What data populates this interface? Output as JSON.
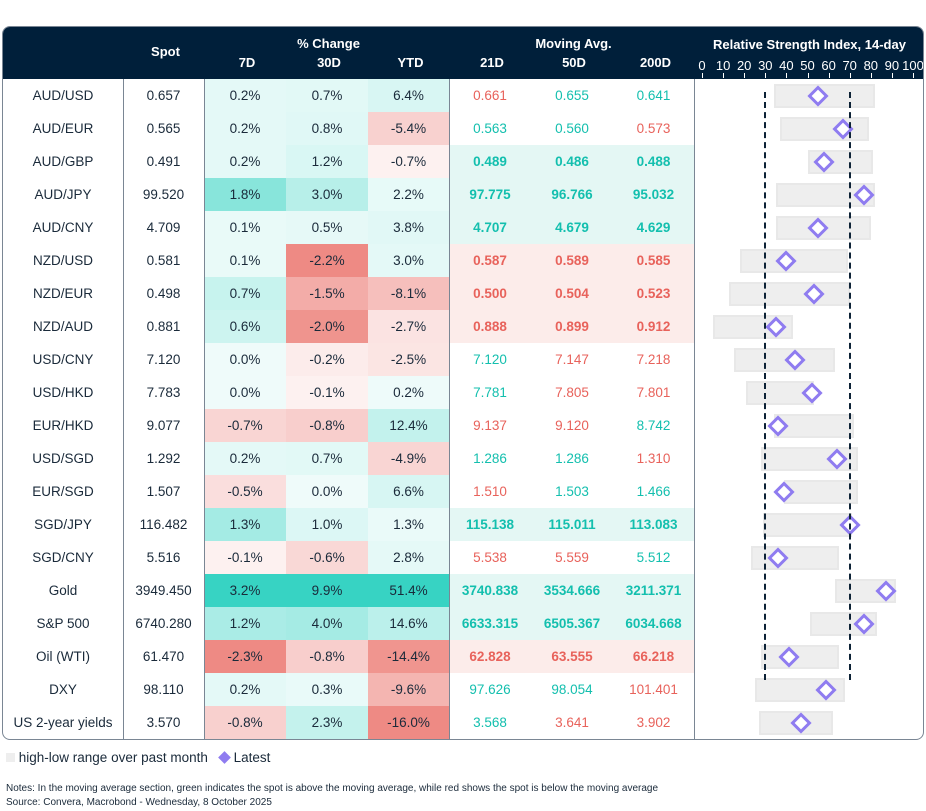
{
  "header": {
    "spot": "Spot",
    "pct_change": "% Change",
    "d7": "7D",
    "d30": "30D",
    "ytd": "YTD",
    "moving_avg": "Moving Avg.",
    "ma21": "21D",
    "ma50": "50D",
    "ma200": "200D",
    "rsi_title": "Relative Strength Index, 14-day"
  },
  "colors": {
    "pos": "#37d3c3",
    "neg": "#ee8a84",
    "ma_green": "#13bfae",
    "ma_red": "#e8625b",
    "ma_green_bg": "#e4f7f4",
    "ma_red_bg": "#fcecea",
    "range": "#eeeeee",
    "latest": "#8f7cf0",
    "header_bg": "#001f3a"
  },
  "chart_data": {
    "type": "table",
    "rsi_axis": {
      "title": "Relative Strength Index, 14-day",
      "range": [
        0,
        100
      ],
      "ticks": [
        "0",
        "10",
        "20",
        "30",
        "40",
        "50",
        "60",
        "70",
        "80",
        "90",
        "100"
      ],
      "reference_lines": [
        30,
        70
      ]
    },
    "rows": [
      {
        "name": "AUD/USD",
        "spot": "0.657",
        "d7": "0.2%",
        "d30": "0.7%",
        "ytd": "6.4%",
        "ma21": "0.661",
        "ma50": "0.655",
        "ma200": "0.641",
        "rsi_low": 34,
        "rsi_high": 82,
        "rsi": 55
      },
      {
        "name": "AUD/EUR",
        "spot": "0.565",
        "d7": "0.2%",
        "d30": "0.8%",
        "ytd": "-5.4%",
        "ma21": "0.563",
        "ma50": "0.560",
        "ma200": "0.573",
        "rsi_low": 37,
        "rsi_high": 79,
        "rsi": 67
      },
      {
        "name": "AUD/GBP",
        "spot": "0.491",
        "d7": "0.2%",
        "d30": "1.2%",
        "ytd": "-0.7%",
        "ma21": "0.489",
        "ma50": "0.486",
        "ma200": "0.488",
        "rsi_low": 50,
        "rsi_high": 81,
        "rsi": 58
      },
      {
        "name": "AUD/JPY",
        "spot": "99.520",
        "d7": "1.8%",
        "d30": "3.0%",
        "ytd": "2.2%",
        "ma21": "97.775",
        "ma50": "96.766",
        "ma200": "95.032",
        "rsi_low": 35,
        "rsi_high": 82,
        "rsi": 77
      },
      {
        "name": "AUD/CNY",
        "spot": "4.709",
        "d7": "0.1%",
        "d30": "0.5%",
        "ytd": "3.8%",
        "ma21": "4.707",
        "ma50": "4.679",
        "ma200": "4.629",
        "rsi_low": 35,
        "rsi_high": 80,
        "rsi": 55
      },
      {
        "name": "NZD/USD",
        "spot": "0.581",
        "d7": "0.1%",
        "d30": "-2.2%",
        "ytd": "3.0%",
        "ma21": "0.587",
        "ma50": "0.589",
        "ma200": "0.585",
        "rsi_low": 18,
        "rsi_high": 69,
        "rsi": 40
      },
      {
        "name": "NZD/EUR",
        "spot": "0.498",
        "d7": "0.7%",
        "d30": "-1.5%",
        "ytd": "-8.1%",
        "ma21": "0.500",
        "ma50": "0.504",
        "ma200": "0.523",
        "rsi_low": 13,
        "rsi_high": 70,
        "rsi": 53
      },
      {
        "name": "NZD/AUD",
        "spot": "0.881",
        "d7": "0.6%",
        "d30": "-2.0%",
        "ytd": "-2.7%",
        "ma21": "0.888",
        "ma50": "0.899",
        "ma200": "0.912",
        "rsi_low": 5,
        "rsi_high": 43,
        "rsi": 35
      },
      {
        "name": "USD/CNY",
        "spot": "7.120",
        "d7": "0.0%",
        "d30": "-0.2%",
        "ytd": "-2.5%",
        "ma21": "7.120",
        "ma50": "7.147",
        "ma200": "7.218",
        "rsi_low": 15,
        "rsi_high": 63,
        "rsi": 44
      },
      {
        "name": "USD/HKD",
        "spot": "7.783",
        "d7": "0.0%",
        "d30": "-0.1%",
        "ytd": "0.2%",
        "ma21": "7.781",
        "ma50": "7.805",
        "ma200": "7.801",
        "rsi_low": 21,
        "rsi_high": 53,
        "rsi": 52
      },
      {
        "name": "EUR/HKD",
        "spot": "9.077",
        "d7": "-0.7%",
        "d30": "-0.8%",
        "ytd": "12.4%",
        "ma21": "9.137",
        "ma50": "9.120",
        "ma200": "8.742",
        "rsi_low": 34,
        "rsi_high": 72,
        "rsi": 36
      },
      {
        "name": "USD/SGD",
        "spot": "1.292",
        "d7": "0.2%",
        "d30": "0.7%",
        "ytd": "-4.9%",
        "ma21": "1.286",
        "ma50": "1.286",
        "ma200": "1.310",
        "rsi_low": 28,
        "rsi_high": 74,
        "rsi": 64
      },
      {
        "name": "EUR/SGD",
        "spot": "1.507",
        "d7": "-0.5%",
        "d30": "0.0%",
        "ytd": "6.6%",
        "ma21": "1.510",
        "ma50": "1.503",
        "ma200": "1.466",
        "rsi_low": 39,
        "rsi_high": 74,
        "rsi": 39
      },
      {
        "name": "SGD/JPY",
        "spot": "116.482",
        "d7": "1.3%",
        "d30": "1.0%",
        "ytd": "1.3%",
        "ma21": "115.138",
        "ma50": "115.011",
        "ma200": "113.083",
        "rsi_low": 29,
        "rsi_high": 71,
        "rsi": 70
      },
      {
        "name": "SGD/CNY",
        "spot": "5.516",
        "d7": "-0.1%",
        "d30": "-0.6%",
        "ytd": "2.8%",
        "ma21": "5.538",
        "ma50": "5.559",
        "ma200": "5.512",
        "rsi_low": 23,
        "rsi_high": 65,
        "rsi": 36
      },
      {
        "name": "Gold",
        "spot": "3949.450",
        "d7": "3.2%",
        "d30": "9.9%",
        "ytd": "51.4%",
        "ma21": "3740.838",
        "ma50": "3534.666",
        "ma200": "3211.371",
        "rsi_low": 63,
        "rsi_high": 92,
        "rsi": 87
      },
      {
        "name": "S&P 500",
        "spot": "6740.280",
        "d7": "1.2%",
        "d30": "4.0%",
        "ytd": "14.6%",
        "ma21": "6633.315",
        "ma50": "6505.367",
        "ma200": "6034.668",
        "rsi_low": 51,
        "rsi_high": 83,
        "rsi": 77
      },
      {
        "name": "Oil (WTI)",
        "spot": "61.470",
        "d7": "-2.3%",
        "d30": "-0.8%",
        "ytd": "-14.4%",
        "ma21": "62.828",
        "ma50": "63.555",
        "ma200": "66.218",
        "rsi_low": 28,
        "rsi_high": 65,
        "rsi": 41
      },
      {
        "name": "DXY",
        "spot": "98.110",
        "d7": "0.2%",
        "d30": "0.3%",
        "ytd": "-9.6%",
        "ma21": "97.626",
        "ma50": "98.054",
        "ma200": "101.401",
        "rsi_low": 25,
        "rsi_high": 68,
        "rsi": 59
      },
      {
        "name": "US 2-year yields",
        "spot": "3.570",
        "d7": "-0.8%",
        "d30": "2.3%",
        "ytd": "-16.0%",
        "ma21": "3.568",
        "ma50": "3.641",
        "ma200": "3.902",
        "rsi_low": 27,
        "rsi_high": 62,
        "rsi": 47
      }
    ]
  },
  "legend": {
    "range": "high-low range over past month",
    "latest": "Latest"
  },
  "notes": "Notes: In the moving average section, green indicates the spot is above the moving average, while red shows the spot is below the moving average",
  "source": "Source: Convera, Macrobond - Wednesday, 8 October 2025"
}
